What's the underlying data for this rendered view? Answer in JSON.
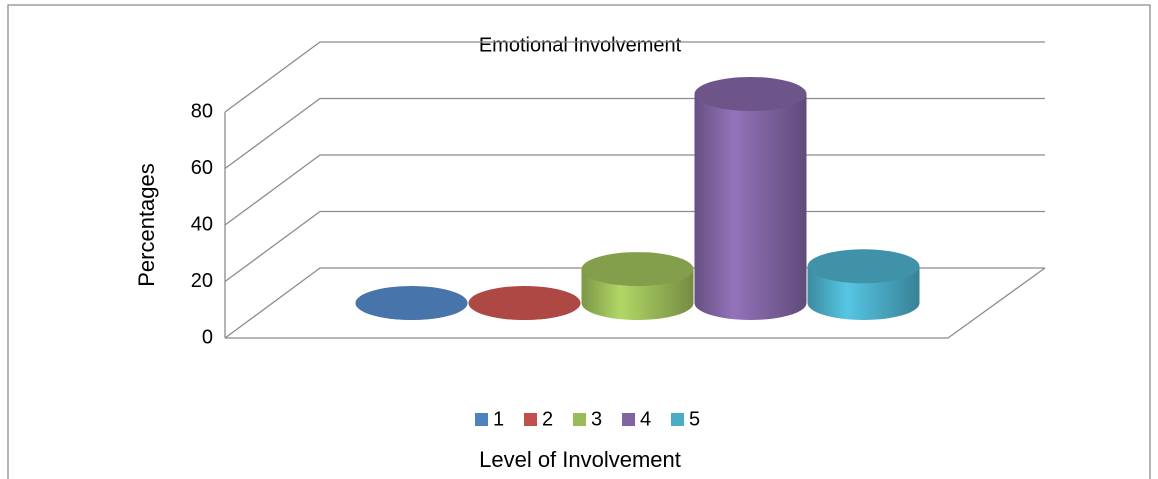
{
  "chart_data": {
    "type": "bar3d_cylinder",
    "title": "Emotional Involvement",
    "x_label": "Level of Involvement",
    "y_label": "Percentages",
    "series": [
      {
        "name": "1",
        "color": "#4f81bd",
        "values": [
          0
        ]
      },
      {
        "name": "2",
        "color": "#c0504d",
        "values": [
          0
        ]
      },
      {
        "name": "3",
        "color": "#9bbb59",
        "values": [
          12
        ]
      },
      {
        "name": "4",
        "color": "#8064a2",
        "values": [
          74
        ]
      },
      {
        "name": "5",
        "color": "#4bacc6",
        "values": [
          13
        ]
      }
    ],
    "ylim": [
      0,
      80
    ],
    "yticks": [
      0,
      20,
      40,
      60,
      80
    ],
    "grid": true,
    "legend": "bottom"
  }
}
